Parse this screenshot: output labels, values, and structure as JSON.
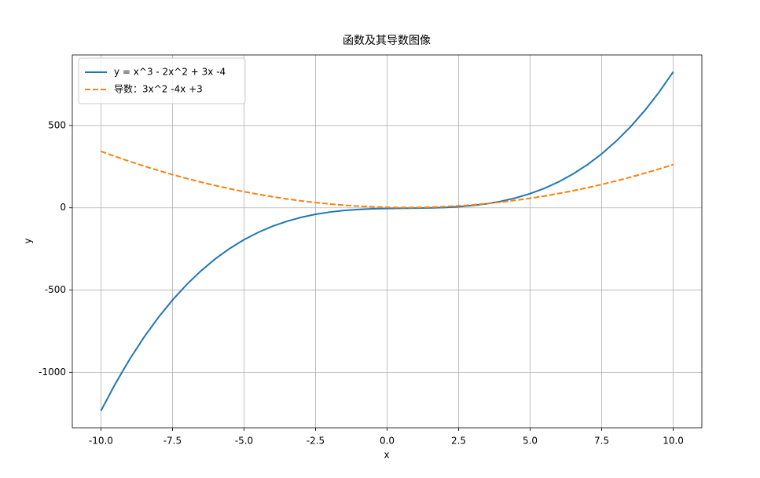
{
  "chart_data": {
    "type": "line",
    "title": "函数及其导数图像",
    "xlabel": "x",
    "ylabel": "y",
    "x": [
      -10,
      -9.5,
      -9,
      -8.5,
      -8,
      -7.5,
      -7,
      -6.5,
      -6,
      -5.5,
      -5,
      -4.5,
      -4,
      -3.5,
      -3,
      -2.5,
      -2,
      -1.5,
      -1,
      -0.5,
      0,
      0.5,
      1,
      1.5,
      2,
      2.5,
      3,
      3.5,
      4,
      4.5,
      5,
      5.5,
      6,
      6.5,
      7,
      7.5,
      8,
      8.5,
      9,
      9.5,
      10
    ],
    "series": [
      {
        "name": "y = x^3 - 2x^2 + 3x -4",
        "color": "#1f77b4",
        "linestyle": "solid",
        "values": [
          -1234,
          -1070.375,
          -922,
          -788.125,
          -668,
          -560.875,
          -466,
          -382.625,
          -310,
          -247.375,
          -194,
          -149.125,
          -112,
          -81.875,
          -58,
          -39.625,
          -26,
          -16.375,
          -10,
          -6.125,
          -4,
          -2.875,
          -2,
          -0.625,
          2,
          6.625,
          14,
          24.875,
          40,
          60.125,
          86,
          118.375,
          158,
          205.625,
          262,
          327.875,
          404,
          491.125,
          590,
          701.375,
          826
        ]
      },
      {
        "name": "导数：3x^2 -4x +3",
        "color": "#ff7f0e",
        "linestyle": "dashed",
        "values": [
          343,
          311.75,
          282,
          253.75,
          227,
          201.75,
          178,
          155.75,
          135,
          115.75,
          98,
          81.75,
          67,
          53.75,
          42,
          31.75,
          23,
          15.75,
          10,
          5.75,
          3,
          1.75,
          2,
          3.75,
          7,
          11.75,
          18,
          25.75,
          35,
          45.75,
          58,
          71.75,
          87,
          103.75,
          122,
          141.75,
          163,
          185.75,
          210,
          235.75,
          263
        ]
      }
    ],
    "xlim": [
      -11,
      11
    ],
    "xticks": [
      {
        "value": -10,
        "label": "-10.0"
      },
      -7.5,
      {
        "value": -5,
        "label": "-5.0"
      },
      -2.5,
      {
        "value": 0,
        "label": "0.0"
      },
      2.5,
      {
        "value": 5,
        "label": "5.0"
      },
      7.5,
      {
        "value": 10,
        "label": "10.0"
      }
    ],
    "ylim": [
      -1337,
      929
    ],
    "yticks": [
      -1000,
      -500,
      0,
      500
    ],
    "grid": true,
    "legend": "upper left"
  }
}
